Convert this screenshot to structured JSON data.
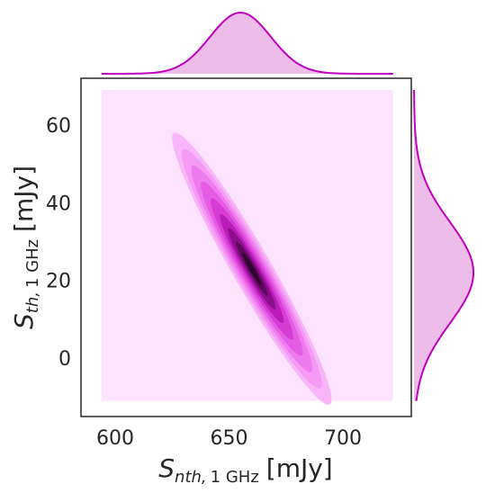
{
  "chart_data": {
    "type": "joint-kde",
    "x_axis": {
      "label_main": "S",
      "label_sub_italic": "nth,",
      "label_sub_upright": "1 GHz",
      "label_unit": "[mJy]",
      "ticks": [
        "600",
        "650",
        "700"
      ],
      "tick_values": [
        600,
        650,
        700
      ],
      "range": [
        585,
        730
      ]
    },
    "y_axis": {
      "label_main": "S",
      "label_sub_italic": "th,",
      "label_sub_upright": "1 GHz",
      "label_unit": "[mJy]",
      "ticks": [
        "0",
        "20",
        "40",
        "60"
      ],
      "tick_values": [
        0,
        20,
        40,
        60
      ],
      "range": [
        -15,
        72
      ]
    },
    "kde": {
      "mean": {
        "x": 660,
        "y": 23
      },
      "sd": {
        "x": 14,
        "y": 14
      },
      "correlation": -0.96,
      "support_x": [
        594,
        722
      ],
      "support_y": [
        -11,
        69
      ],
      "color": "#bf00bf",
      "lightest_fill": "#fde3fd"
    },
    "marginals": {
      "x_peak": 655,
      "y_peak": 22
    },
    "colors": {
      "line": "#bf00bf",
      "marginal_fill": "#eebce8",
      "frame": "#262626"
    }
  }
}
